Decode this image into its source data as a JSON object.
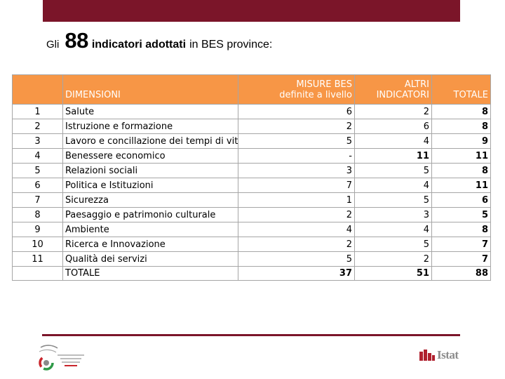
{
  "title": {
    "word1": "Gli",
    "number": "88",
    "bold_text": "indicatori adottati",
    "rest_text": "in BES province:"
  },
  "table": {
    "headers": {
      "num": "",
      "dimensioni": "DIMENSIONI",
      "misure_line1": "MISURE BES",
      "misure_line2": "definite a livello",
      "altri_line1": "ALTRI",
      "altri_line2": "INDICATORI",
      "totale": "TOTALE"
    },
    "rows": [
      {
        "n": "1",
        "dim": "Salute",
        "misure": "6",
        "altri": "2",
        "totale": "8"
      },
      {
        "n": "2",
        "dim": "Istruzione e formazione",
        "misure": "2",
        "altri": "6",
        "totale": "8"
      },
      {
        "n": "3",
        "dim": "Lavoro e concillazione dei tempi di vita",
        "misure": "5",
        "altri": "4",
        "totale": "9"
      },
      {
        "n": "4",
        "dim": "Benessere economico",
        "misure": "-",
        "altri": "11",
        "totale": "11"
      },
      {
        "n": "5",
        "dim": "Relazioni sociali",
        "misure": "3",
        "altri": "5",
        "totale": "8"
      },
      {
        "n": "6",
        "dim": "Politica e Istituzioni",
        "misure": "7",
        "altri": "4",
        "totale": "11"
      },
      {
        "n": "7",
        "dim": "Sicurezza",
        "misure": "1",
        "altri": "5",
        "totale": "6"
      },
      {
        "n": "8",
        "dim": "Paesaggio e patrimonio culturale",
        "misure": "2",
        "altri": "3",
        "totale": "5"
      },
      {
        "n": "9",
        "dim": "Ambiente",
        "misure": "4",
        "altri": "4",
        "totale": "8"
      },
      {
        "n": "10",
        "dim": "Ricerca e Innovazione",
        "misure": "2",
        "altri": "5",
        "totale": "7"
      },
      {
        "n": "11",
        "dim": "Qualità dei servizi",
        "misure": "5",
        "altri": "2",
        "totale": "7"
      }
    ],
    "total": {
      "n": "",
      "dim": "TOTALE",
      "misure": "37",
      "altri": "51",
      "totale": "88"
    }
  },
  "footer": {
    "istat_label": "Istat",
    "colors": {
      "brand": "#7b1529",
      "header": "#f79646",
      "istat_red": "#b0202e"
    },
    "logo_left_icon": "giornata-statistica-logo",
    "logo_right_icon": "istat-logo"
  }
}
